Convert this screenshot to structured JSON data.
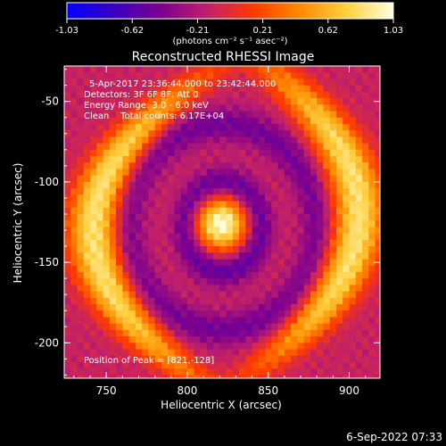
{
  "chart_data": {
    "type": "heatmap",
    "title": "Reconstructed RHESSI Image",
    "xlabel": "Heliocentric X (arcsec)",
    "ylabel": "Heliocentric Y (arcsec)",
    "xlim": [
      724,
      919
    ],
    "ylim": [
      -222,
      -28
    ],
    "x_ticks": [
      750,
      800,
      850,
      900
    ],
    "y_ticks": [
      -200,
      -150,
      -100,
      -50
    ],
    "grid": false,
    "colorbar": {
      "position": "top",
      "min": -1.03,
      "max": 1.03,
      "ticks": [
        "-1.03",
        "-0.62",
        "-0.21",
        "0.21",
        "0.62",
        "1.03"
      ],
      "unit_label": "(photons cm⁻² s⁻¹ asec⁻²)",
      "colors": [
        "#0000ff",
        "#3a00c0",
        "#7a0090",
        "#c0206a",
        "#ff3a00",
        "#ff8a00",
        "#ffd040",
        "#ffffe0"
      ]
    },
    "annotations": {
      "time_range": "5-Apr-2017 23:36:44.000 to 23:42:44.000",
      "detectors": "Detectors: 3F 6F 8F, Att 0",
      "energy": "Energy Range: 3.0 - 6.0 keV",
      "method": "Clean    Total counts: 6.17E+04",
      "peak": "Position of Peak = [821,-128]"
    },
    "peak": {
      "x": 821,
      "y": -128
    },
    "structures": [
      {
        "kind": "core",
        "x": 821,
        "y": -126,
        "level": 1.0
      },
      {
        "kind": "ring",
        "x": 822,
        "y": -128,
        "level": -0.45
      },
      {
        "kind": "left_arc",
        "x": 752,
        "y": -130,
        "level": 0.8
      },
      {
        "kind": "right_arc",
        "x": 898,
        "y": -120,
        "level": 0.8
      }
    ],
    "footer": "6-Sep-2022 07:33"
  }
}
